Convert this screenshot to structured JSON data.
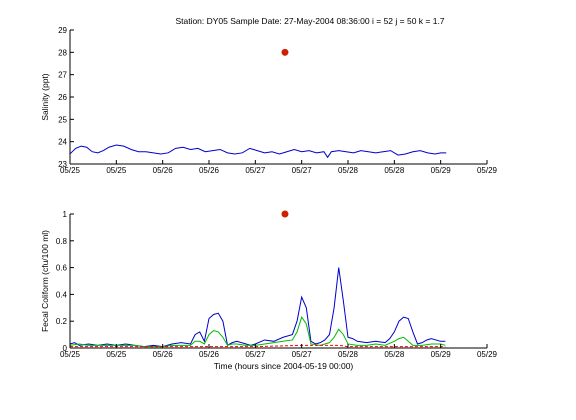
{
  "title": "Station: DY05  Sample Date: 27-May-2004 08:36:00   i = 52 j = 50 k = 1.7",
  "colors": {
    "series_blue": "#0000cc",
    "series_green": "#00bb00",
    "series_red_dashed": "#ff0000",
    "sample_marker": "#cc2200",
    "axes": "#000000"
  },
  "chart_data": [
    {
      "type": "line",
      "title": "",
      "ylabel": "Salinity (ppt)",
      "xlabel": "",
      "xlim": [
        6,
        10.5
      ],
      "ylim": [
        23,
        29
      ],
      "x_tick_values": [
        6,
        6.5,
        7,
        7.5,
        8,
        8.5,
        9,
        9.5,
        10,
        10.5
      ],
      "x_tick_labels": [
        "05/25",
        "05/25",
        "05/26",
        "05/26",
        "05/27",
        "05/27",
        "05/28",
        "05/28",
        "05/29",
        "05/29"
      ],
      "y_ticks": [
        23,
        24,
        25,
        26,
        27,
        28,
        29
      ],
      "grid": false,
      "series": [
        {
          "color": "#0000cc",
          "style": "solid",
          "x": [
            6.0,
            6.06,
            6.12,
            6.18,
            6.24,
            6.3,
            6.36,
            6.42,
            6.5,
            6.58,
            6.66,
            6.74,
            6.82,
            6.9,
            6.98,
            7.06,
            7.14,
            7.22,
            7.3,
            7.38,
            7.46,
            7.54,
            7.62,
            7.7,
            7.78,
            7.86,
            7.94,
            8.02,
            8.1,
            8.18,
            8.26,
            8.34,
            8.42,
            8.5,
            8.58,
            8.66,
            8.74,
            8.78,
            8.82,
            8.9,
            8.98,
            9.06,
            9.14,
            9.22,
            9.3,
            9.38,
            9.46,
            9.54,
            9.62,
            9.7,
            9.78,
            9.86,
            9.94,
            10.0,
            10.06
          ],
          "y": [
            23.45,
            23.7,
            23.8,
            23.75,
            23.55,
            23.5,
            23.6,
            23.75,
            23.85,
            23.8,
            23.65,
            23.55,
            23.55,
            23.5,
            23.45,
            23.5,
            23.7,
            23.75,
            23.65,
            23.7,
            23.55,
            23.6,
            23.65,
            23.5,
            23.45,
            23.5,
            23.7,
            23.6,
            23.5,
            23.55,
            23.45,
            23.55,
            23.65,
            23.55,
            23.6,
            23.5,
            23.55,
            23.3,
            23.55,
            23.6,
            23.55,
            23.5,
            23.6,
            23.55,
            23.5,
            23.55,
            23.6,
            23.4,
            23.45,
            23.55,
            23.6,
            23.5,
            23.45,
            23.5,
            23.5
          ]
        }
      ],
      "sample_point": {
        "x": 8.32,
        "y": 28.0
      }
    },
    {
      "type": "line",
      "title": "",
      "ylabel": "Fecal Coliform (cfu/100 ml)",
      "xlabel": "Time (hours since 2004-05-19 00:00)",
      "xlim": [
        6,
        10.5
      ],
      "ylim": [
        0,
        1
      ],
      "x_tick_values": [
        6,
        6.5,
        7,
        7.5,
        8,
        8.5,
        9,
        9.5,
        10,
        10.5
      ],
      "x_tick_labels": [
        "05/25",
        "05/25",
        "05/26",
        "05/26",
        "05/27",
        "05/27",
        "05/28",
        "05/28",
        "05/29",
        "05/29"
      ],
      "y_ticks": [
        0,
        0.2,
        0.4,
        0.6,
        0.8,
        1
      ],
      "y_tick_labels": [
        "0",
        "0.2",
        "0.4",
        "0.6",
        "0.8",
        "1"
      ],
      "grid": false,
      "series": [
        {
          "color": "#0000cc",
          "style": "solid",
          "x": [
            6.0,
            6.05,
            6.1,
            6.2,
            6.3,
            6.4,
            6.5,
            6.6,
            6.7,
            6.8,
            6.9,
            7.0,
            7.1,
            7.2,
            7.3,
            7.35,
            7.4,
            7.45,
            7.5,
            7.55,
            7.6,
            7.65,
            7.7,
            7.75,
            7.8,
            7.9,
            7.95,
            8.0,
            8.1,
            8.2,
            8.3,
            8.4,
            8.45,
            8.5,
            8.55,
            8.6,
            8.65,
            8.7,
            8.75,
            8.8,
            8.85,
            8.9,
            8.95,
            9.0,
            9.05,
            9.1,
            9.2,
            9.3,
            9.4,
            9.45,
            9.5,
            9.55,
            9.6,
            9.65,
            9.7,
            9.75,
            9.8,
            9.85,
            9.9,
            10.0,
            10.05
          ],
          "y": [
            0.03,
            0.04,
            0.02,
            0.03,
            0.02,
            0.03,
            0.02,
            0.03,
            0.02,
            0.01,
            0.02,
            0.01,
            0.03,
            0.04,
            0.03,
            0.1,
            0.12,
            0.05,
            0.22,
            0.25,
            0.26,
            0.2,
            0.02,
            0.04,
            0.05,
            0.03,
            0.02,
            0.03,
            0.06,
            0.05,
            0.08,
            0.1,
            0.2,
            0.38,
            0.3,
            0.05,
            0.03,
            0.04,
            0.06,
            0.1,
            0.3,
            0.6,
            0.35,
            0.08,
            0.07,
            0.05,
            0.04,
            0.05,
            0.04,
            0.07,
            0.12,
            0.2,
            0.23,
            0.22,
            0.12,
            0.03,
            0.04,
            0.06,
            0.07,
            0.05,
            0.05
          ]
        },
        {
          "color": "#00bb00",
          "style": "solid",
          "x": [
            6.0,
            6.1,
            6.2,
            6.3,
            6.4,
            6.5,
            6.6,
            6.7,
            6.8,
            6.9,
            7.0,
            7.1,
            7.2,
            7.3,
            7.35,
            7.4,
            7.45,
            7.5,
            7.55,
            7.6,
            7.65,
            7.7,
            7.75,
            7.8,
            7.9,
            8.0,
            8.1,
            8.2,
            8.3,
            8.4,
            8.45,
            8.5,
            8.55,
            8.6,
            8.7,
            8.8,
            8.85,
            8.9,
            8.95,
            9.0,
            9.1,
            9.2,
            9.3,
            9.4,
            9.5,
            9.55,
            9.6,
            9.65,
            9.7,
            9.8,
            9.9,
            10.0,
            10.05
          ],
          "y": [
            0.02,
            0.03,
            0.02,
            0.02,
            0.02,
            0.02,
            0.02,
            0.02,
            0.01,
            0.01,
            0.01,
            0.02,
            0.02,
            0.02,
            0.05,
            0.05,
            0.03,
            0.1,
            0.13,
            0.12,
            0.08,
            0.02,
            0.03,
            0.03,
            0.02,
            0.02,
            0.03,
            0.04,
            0.05,
            0.06,
            0.12,
            0.23,
            0.18,
            0.03,
            0.02,
            0.04,
            0.08,
            0.14,
            0.1,
            0.03,
            0.02,
            0.02,
            0.03,
            0.02,
            0.05,
            0.07,
            0.08,
            0.05,
            0.02,
            0.02,
            0.03,
            0.03,
            0.02
          ]
        },
        {
          "color": "#ff0000",
          "style": "dashed",
          "x": [
            6.0,
            6.5,
            7.0,
            7.5,
            7.7,
            8.0,
            8.5,
            8.9,
            9.0,
            9.5,
            9.7,
            10.05
          ],
          "y": [
            0.01,
            0.01,
            0.01,
            0.01,
            0.01,
            0.01,
            0.02,
            0.02,
            0.01,
            0.01,
            0.01,
            0.01
          ]
        }
      ],
      "sample_point": {
        "x": 8.32,
        "y": 1.0
      }
    }
  ]
}
